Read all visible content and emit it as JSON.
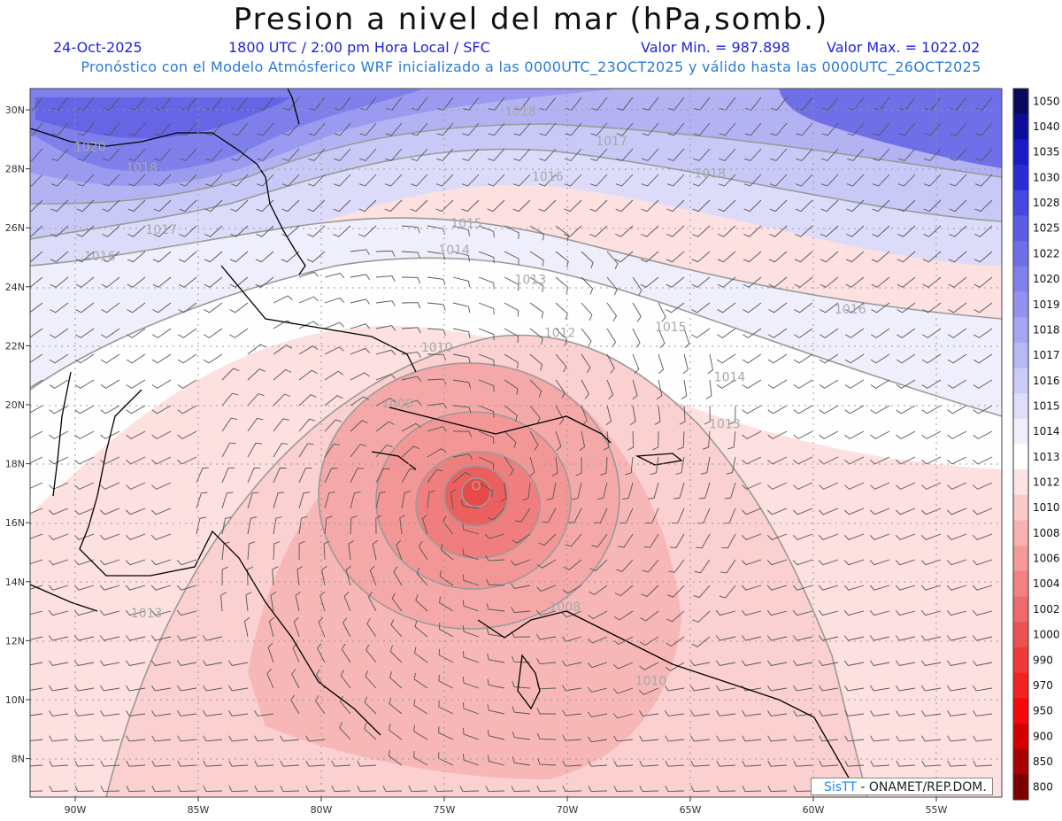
{
  "title": "Presion a nivel del mar (hPa,somb.)",
  "header": {
    "date": "24-Oct-2025",
    "time": "1800 UTC / 2:00 pm Hora Local / SFC",
    "min": "Valor Min. = 987.898",
    "max": "Valor Max. = 1022.02",
    "forecast": "Pronóstico con el Modelo Atmósferico WRF inicializado a las 0000UTC_23OCT2025 y válido hasta las  0000UTC_26OCT2025"
  },
  "axes": {
    "lat_labels": [
      "30N",
      "28N",
      "26N",
      "24N",
      "22N",
      "20N",
      "18N",
      "16N",
      "14N",
      "12N",
      "10N",
      "8N"
    ],
    "lon_labels": [
      "90W",
      "85W",
      "80W",
      "75W",
      "70W",
      "65W",
      "60W",
      "55W"
    ]
  },
  "colorbar": {
    "levels": [
      "1050",
      "1040",
      "1035",
      "1030",
      "1028",
      "1025",
      "1022",
      "1020",
      "1019",
      "1018",
      "1017",
      "1016",
      "1015",
      "1014",
      "1013",
      "1012",
      "1010",
      "1008",
      "1006",
      "1004",
      "1002",
      "1000",
      "990",
      "970",
      "950",
      "900",
      "850",
      "800"
    ],
    "colors": [
      "#0a0a5c",
      "#0d0d9a",
      "#1a1ac6",
      "#2b2bd8",
      "#4646e0",
      "#5c5ce6",
      "#6f6fe8",
      "#8181ec",
      "#9393ef",
      "#a5a5f2",
      "#b8b8f5",
      "#cbcbf8",
      "#dedefb",
      "#f0f0fd",
      "#ffffff",
      "#fde3e3",
      "#fbcaca",
      "#f8b2b2",
      "#f59a9a",
      "#f28282",
      "#ef6a6a",
      "#ec5252",
      "#ef3a3a",
      "#f22222",
      "#f50a0a",
      "#d40000",
      "#a80000",
      "#7a0000"
    ]
  },
  "contour_labels": [
    {
      "text": "1020",
      "lon": -89.4,
      "lat": 28.6
    },
    {
      "text": "1018",
      "lon": -87.3,
      "lat": 27.9
    },
    {
      "text": "1018",
      "lon": -71.9,
      "lat": 29.8
    },
    {
      "text": "1017",
      "lon": -68.2,
      "lat": 28.8
    },
    {
      "text": "1016",
      "lon": -70.8,
      "lat": 27.6
    },
    {
      "text": "1018",
      "lon": -64.2,
      "lat": 27.7
    },
    {
      "text": "1017",
      "lon": -86.5,
      "lat": 25.8
    },
    {
      "text": "1016",
      "lon": -89.0,
      "lat": 24.9
    },
    {
      "text": "1015",
      "lon": -74.1,
      "lat": 26.0
    },
    {
      "text": "1014",
      "lon": -74.6,
      "lat": 25.1
    },
    {
      "text": "1013",
      "lon": -71.5,
      "lat": 24.1
    },
    {
      "text": "1012",
      "lon": -70.3,
      "lat": 22.3
    },
    {
      "text": "1015",
      "lon": -65.8,
      "lat": 22.5
    },
    {
      "text": "1016",
      "lon": -58.5,
      "lat": 23.1
    },
    {
      "text": "1010",
      "lon": -75.3,
      "lat": 21.8
    },
    {
      "text": "1014",
      "lon": -63.4,
      "lat": 20.8
    },
    {
      "text": "1013",
      "lon": -63.6,
      "lat": 19.2
    },
    {
      "text": "1008",
      "lon": -76.9,
      "lat": 19.9
    },
    {
      "text": "1008",
      "lon": -70.1,
      "lat": 13.0
    },
    {
      "text": "1013",
      "lon": -87.1,
      "lat": 12.8
    },
    {
      "text": "1010",
      "lon": -66.6,
      "lat": 10.5
    },
    {
      "text": "O",
      "lon": -73.7,
      "lat": 17.1
    }
  ],
  "credit": {
    "logo": "SisTT",
    "text": "- ONAMET/REP.DOM."
  },
  "colors": {
    "frame": "#444444",
    "coast": "#000000",
    "grid": "#999999",
    "contour": "#9a9a9a"
  }
}
